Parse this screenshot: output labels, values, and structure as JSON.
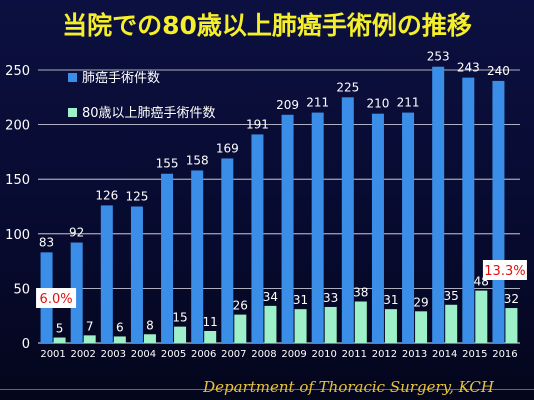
{
  "title": "当院での80歳以上肺癌手術例の推移",
  "footer": "Department of Thoracic Surgery, KCH",
  "colors": {
    "background": "#070a2e",
    "total_bar": "#3a8ee8",
    "elderly_bar": "#9df0c8",
    "title": "#f5ee2a",
    "annotation_text": "#e01010",
    "annotation_bg": "#ffffff"
  },
  "chart_data": {
    "type": "bar",
    "categories": [
      "2001",
      "2002",
      "2003",
      "2004",
      "2005",
      "2006",
      "2007",
      "2008",
      "2009",
      "2010",
      "2011",
      "2012",
      "2013",
      "2014",
      "2015",
      "2016"
    ],
    "series": [
      {
        "name": "肺癌手術件数",
        "values": [
          83,
          92,
          126,
          125,
          155,
          158,
          169,
          191,
          209,
          211,
          225,
          210,
          211,
          253,
          243,
          240
        ]
      },
      {
        "name": "80歳以上肺癌手術件数",
        "values": [
          5,
          7,
          6,
          8,
          15,
          11,
          26,
          34,
          31,
          33,
          38,
          31,
          29,
          35,
          48,
          32
        ]
      }
    ],
    "ylim": [
      0,
      250
    ],
    "yticks": [
      0,
      50,
      100,
      150,
      200,
      250
    ],
    "grid": true,
    "legend": "top-left",
    "annotations": [
      {
        "category": "2001",
        "text": "6.0%"
      },
      {
        "category": "2016",
        "text": "13.3%"
      }
    ]
  }
}
